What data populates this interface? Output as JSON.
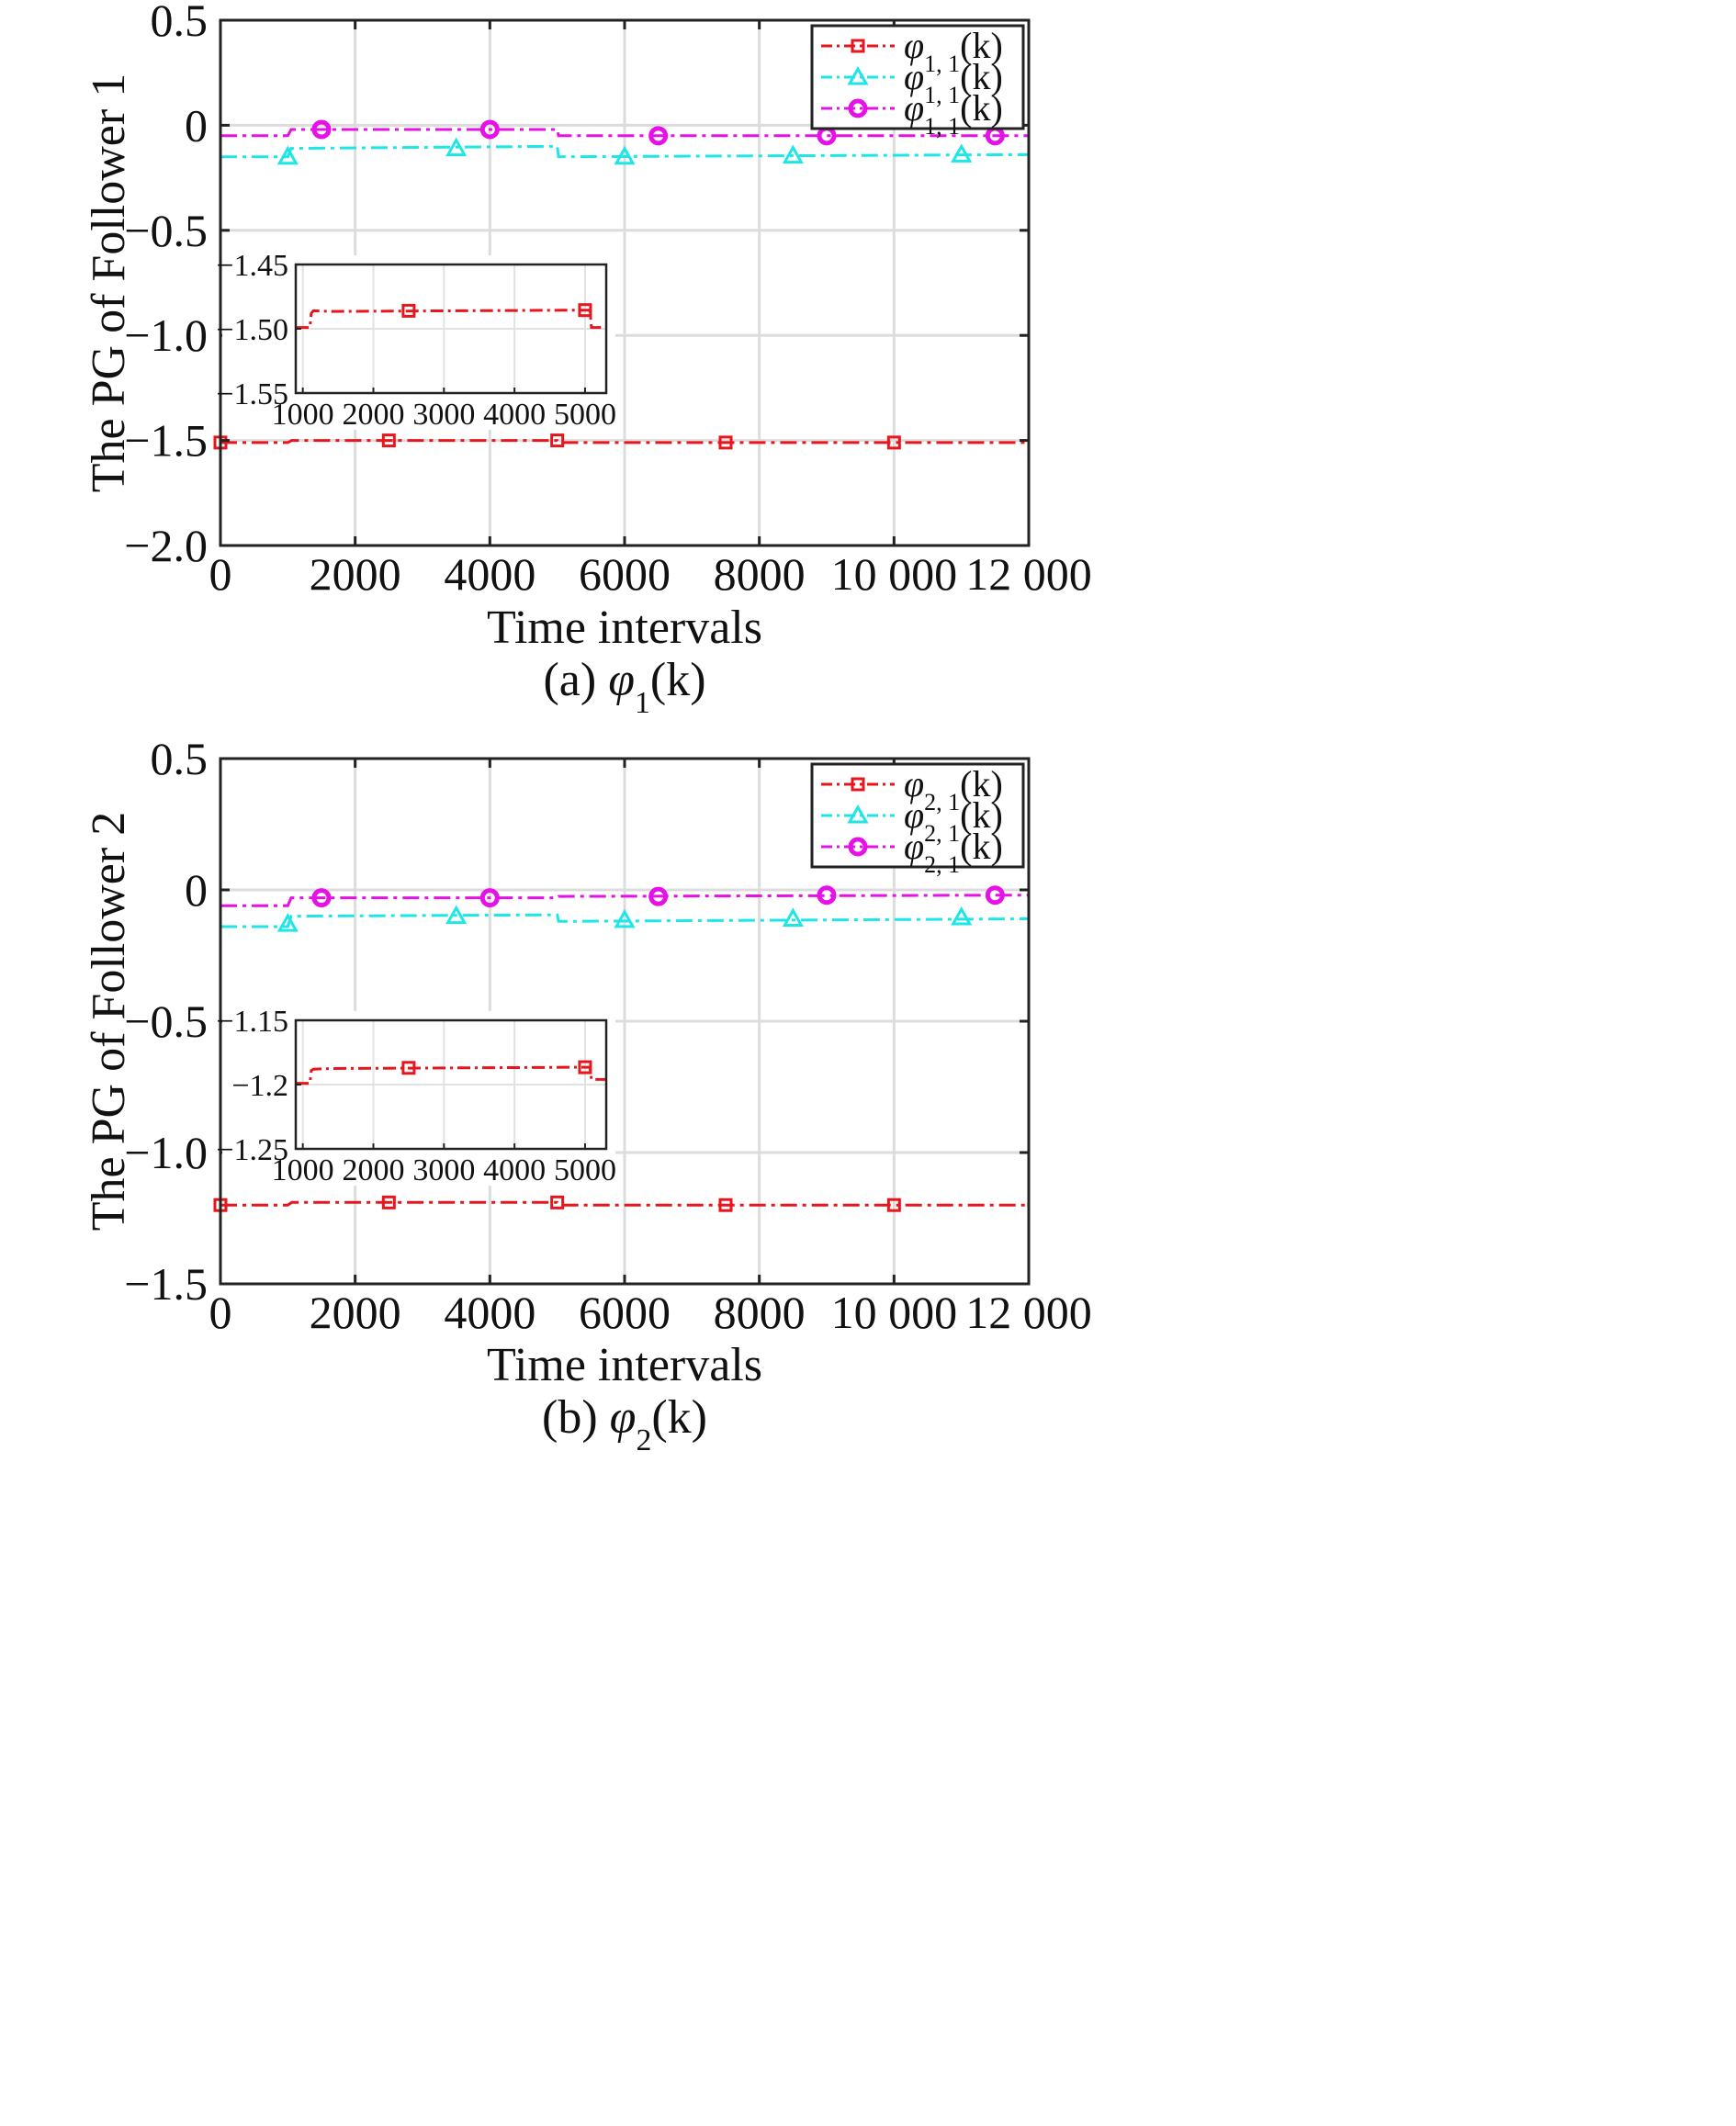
{
  "chart_data": [
    {
      "type": "line",
      "panel": "a",
      "caption_prefix": "(a)",
      "caption_symbol": "φ",
      "caption_sub": "1",
      "caption_arg": "(k)",
      "ylabel": "The PG of Follower 1",
      "xlabel": "Time intervals",
      "xlim": [
        0,
        12000
      ],
      "ylim": [
        -2.0,
        0.5
      ],
      "xticks": [
        0,
        2000,
        4000,
        6000,
        8000,
        10000,
        12000
      ],
      "xtick_labels": [
        "0",
        "2000",
        "4000",
        "6000",
        "8000",
        "10 000",
        "12 000"
      ],
      "yticks": [
        0.5,
        0,
        -0.5,
        -1.0,
        -1.5,
        -2.0
      ],
      "ytick_labels": [
        "0.5",
        "0",
        "−0.5",
        "−1.0",
        "−1.5",
        "−2.0"
      ],
      "grid": true,
      "legend_position": "top-right",
      "series": [
        {
          "legend_symbol": "φ",
          "legend_sub": "1, 1",
          "legend_arg": "(k)",
          "color": "#e8161c",
          "marker": "square",
          "dash": "dashdot",
          "points": [
            [
              0,
              -1.51
            ],
            [
              1000,
              -1.51
            ],
            [
              1060,
              -1.5
            ],
            [
              1200,
              -1.5
            ],
            [
              5000,
              -1.5
            ],
            [
              5030,
              -1.515
            ],
            [
              5100,
              -1.51
            ],
            [
              12000,
              -1.51
            ]
          ],
          "markers": [
            [
              0,
              -1.51
            ],
            [
              2500,
              -1.5
            ],
            [
              5000,
              -1.5
            ],
            [
              7500,
              -1.51
            ],
            [
              10000,
              -1.51
            ]
          ]
        },
        {
          "legend_symbol": "φ",
          "legend_sub": "1, 1",
          "legend_arg": "(k)",
          "color": "#1ee6e6",
          "marker": "triangle",
          "dash": "dashdot",
          "points": [
            [
              0,
              -0.15
            ],
            [
              1000,
              -0.15
            ],
            [
              1050,
              -0.11
            ],
            [
              5000,
              -0.1
            ],
            [
              5020,
              -0.15
            ],
            [
              12000,
              -0.14
            ]
          ],
          "markers": [
            [
              1000,
              -0.15
            ],
            [
              3500,
              -0.11
            ],
            [
              6000,
              -0.15
            ],
            [
              8500,
              -0.145
            ],
            [
              11000,
              -0.14
            ]
          ]
        },
        {
          "legend_symbol": "φ",
          "legend_sub": "1, 1",
          "legend_arg": "(k)",
          "color": "#e611e6",
          "marker": "circle",
          "dash": "dashdot",
          "points": [
            [
              0,
              -0.05
            ],
            [
              1000,
              -0.05
            ],
            [
              1050,
              -0.02
            ],
            [
              5000,
              -0.02
            ],
            [
              5020,
              -0.05
            ],
            [
              12000,
              -0.05
            ]
          ],
          "markers": [
            [
              1500,
              -0.02
            ],
            [
              4000,
              -0.02
            ],
            [
              6500,
              -0.05
            ],
            [
              9000,
              -0.05
            ],
            [
              11500,
              -0.05
            ]
          ]
        }
      ],
      "inset": {
        "xlim": [
          900,
          5300
        ],
        "ylim": [
          -1.55,
          -1.45
        ],
        "xticks": [
          1000,
          2000,
          3000,
          4000,
          5000
        ],
        "xtick_labels": [
          "1000",
          "2000",
          "3000",
          "4000",
          "5000"
        ],
        "yticks": [
          -1.45,
          -1.5,
          -1.55
        ],
        "ytick_labels": [
          "−1.45",
          "−1.50",
          "−1.55"
        ],
        "series": [
          {
            "color": "#e8161c",
            "points": [
              [
                900,
                -1.499
              ],
              [
                1100,
                -1.499
              ],
              [
                1120,
                -1.488
              ],
              [
                1150,
                -1.486
              ],
              [
                1400,
                -1.4865
              ],
              [
                5000,
                -1.4855
              ],
              [
                5070,
                -1.4855
              ],
              [
                5090,
                -1.499
              ],
              [
                5300,
                -1.499
              ]
            ],
            "markers": [
              [
                2500,
                -1.486
              ],
              [
                5000,
                -1.4855
              ]
            ]
          }
        ]
      }
    },
    {
      "type": "line",
      "panel": "b",
      "caption_prefix": "(b)",
      "caption_symbol": "φ",
      "caption_sub": "2",
      "caption_arg": "(k)",
      "ylabel": "The PG of Follower 2",
      "xlabel": "Time intervals",
      "xlim": [
        0,
        12000
      ],
      "ylim": [
        -1.5,
        0.5
      ],
      "xticks": [
        0,
        2000,
        4000,
        6000,
        8000,
        10000,
        12000
      ],
      "xtick_labels": [
        "0",
        "2000",
        "4000",
        "6000",
        "8000",
        "10 000",
        "12 000"
      ],
      "yticks": [
        0.5,
        0,
        -0.5,
        -1.0,
        -1.5
      ],
      "ytick_labels": [
        "0.5",
        "0",
        "−0.5",
        "−1.0",
        "−1.5"
      ],
      "grid": true,
      "legend_position": "top-right",
      "series": [
        {
          "legend_symbol": "φ",
          "legend_sub": "2, 1",
          "legend_arg": "(k)",
          "color": "#e8161c",
          "marker": "square",
          "dash": "dashdot",
          "points": [
            [
              0,
              -1.2
            ],
            [
              1000,
              -1.2
            ],
            [
              1060,
              -1.19
            ],
            [
              1200,
              -1.19
            ],
            [
              5000,
              -1.19
            ],
            [
              5030,
              -1.2
            ],
            [
              12000,
              -1.2
            ]
          ],
          "markers": [
            [
              0,
              -1.2
            ],
            [
              2500,
              -1.19
            ],
            [
              5000,
              -1.19
            ],
            [
              7500,
              -1.2
            ],
            [
              10000,
              -1.2
            ]
          ]
        },
        {
          "legend_symbol": "φ",
          "legend_sub": "2, 1",
          "legend_arg": "(k)",
          "color": "#1ee6e6",
          "marker": "triangle",
          "dash": "dashdot",
          "points": [
            [
              0,
              -0.14
            ],
            [
              1000,
              -0.14
            ],
            [
              1050,
              -0.1
            ],
            [
              5000,
              -0.095
            ],
            [
              5020,
              -0.12
            ],
            [
              12000,
              -0.11
            ]
          ],
          "markers": [
            [
              1000,
              -0.13
            ],
            [
              3500,
              -0.1
            ],
            [
              6000,
              -0.115
            ],
            [
              8500,
              -0.11
            ],
            [
              11000,
              -0.105
            ]
          ]
        },
        {
          "legend_symbol": "φ",
          "legend_sub": "2, 1",
          "legend_arg": "(k)",
          "color": "#e611e6",
          "marker": "circle",
          "dash": "dashdot",
          "points": [
            [
              0,
              -0.06
            ],
            [
              1000,
              -0.06
            ],
            [
              1050,
              -0.03
            ],
            [
              5000,
              -0.03
            ],
            [
              5020,
              -0.025
            ],
            [
              12000,
              -0.02
            ]
          ],
          "markers": [
            [
              1500,
              -0.03
            ],
            [
              4000,
              -0.03
            ],
            [
              6500,
              -0.025
            ],
            [
              9000,
              -0.02
            ],
            [
              11500,
              -0.02
            ]
          ]
        }
      ],
      "inset": {
        "xlim": [
          900,
          5300
        ],
        "ylim": [
          -1.25,
          -1.15
        ],
        "xticks": [
          1000,
          2000,
          3000,
          4000,
          5000
        ],
        "xtick_labels": [
          "1000",
          "2000",
          "3000",
          "4000",
          "5000"
        ],
        "yticks": [
          -1.15,
          -1.2,
          -1.25
        ],
        "ytick_labels": [
          "−1.15",
          "−1.2",
          "−1.25"
        ],
        "series": [
          {
            "color": "#e8161c",
            "points": [
              [
                900,
                -1.199
              ],
              [
                1100,
                -1.199
              ],
              [
                1120,
                -1.189
              ],
              [
                1150,
                -1.188
              ],
              [
                1400,
                -1.1875
              ],
              [
                5000,
                -1.1865
              ],
              [
                5070,
                -1.1865
              ],
              [
                5090,
                -1.196
              ],
              [
                5300,
                -1.196
              ]
            ],
            "markers": [
              [
                2500,
                -1.187
              ],
              [
                5000,
                -1.1865
              ]
            ]
          }
        ]
      }
    }
  ]
}
